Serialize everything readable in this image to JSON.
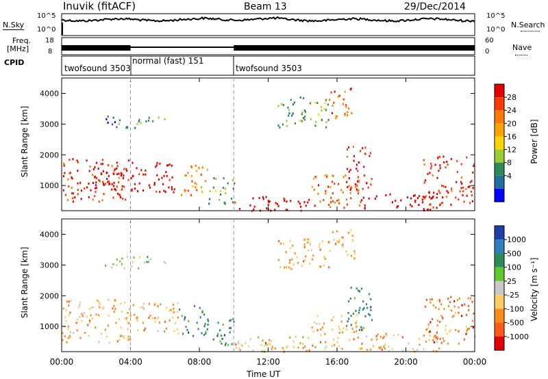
{
  "header": {
    "station": "Inuvik (fitACF)",
    "beam": "Beam 13",
    "date": "29/Dec/2014"
  },
  "noise_panel": {
    "left_label": "N.Sky",
    "left_ticks": [
      "10^5",
      "10^0"
    ],
    "right_ticks": [
      "10^5",
      "10^0"
    ],
    "right_label": "N.Search"
  },
  "freq_panel": {
    "left_label_line1": "Freq.",
    "left_label_line2": "[MHz]",
    "left_ticks": [
      "18",
      "8"
    ],
    "right_ticks": [
      "60",
      "0"
    ],
    "right_label": "Nave"
  },
  "cpid": {
    "label": "CPID",
    "segments": [
      {
        "name": "twofsound 3503",
        "start_hour": 0,
        "end_hour": 4
      },
      {
        "name": "normal (fast) 151",
        "start_hour": 4,
        "end_hour": 10
      },
      {
        "name": "twofsound 3503",
        "start_hour": 10,
        "end_hour": 24
      }
    ]
  },
  "chart_data": [
    {
      "type": "heatmap",
      "title": "",
      "xlabel": "Time UT",
      "ylabel": "Slant Range [km]",
      "xlim": [
        0,
        24
      ],
      "ylim": [
        180,
        4500
      ],
      "x_ticks": [
        "00:00",
        "04:00",
        "08:00",
        "12:00",
        "16:00",
        "20:00",
        "00:00"
      ],
      "y_ticks": [
        "1000",
        "2000",
        "3000",
        "4000"
      ],
      "y_tick_values": [
        1000,
        2000,
        3000,
        4000
      ],
      "colorbar": {
        "label": "Power [dB]",
        "ticks": [
          "28",
          "24",
          "20",
          "16",
          "12",
          "8",
          "4"
        ],
        "colors": [
          "#e30000",
          "#ff3b00",
          "#ff7b00",
          "#ffa400",
          "#ffd400",
          "#9acd32",
          "#2e8b57",
          "#1f6fa0",
          "#0000ff"
        ]
      },
      "scatter_regions": [
        {
          "t_start": 0.0,
          "t_end": 4.0,
          "r_start": 500,
          "r_end": 1900,
          "color_index": 1
        },
        {
          "t_start": 1.8,
          "t_end": 3.6,
          "r_start": 700,
          "r_end": 1600,
          "color_index": 0
        },
        {
          "t_start": 4.0,
          "t_end": 6.8,
          "r_start": 800,
          "r_end": 1800,
          "color_index": 0
        },
        {
          "t_start": 6.8,
          "t_end": 8.5,
          "r_start": 700,
          "r_end": 1700,
          "color_index": 3
        },
        {
          "t_start": 8.5,
          "t_end": 10.0,
          "r_start": 400,
          "r_end": 1300,
          "color_index": 6
        },
        {
          "t_start": 10.0,
          "t_end": 14.5,
          "r_start": 200,
          "r_end": 700,
          "color_index": 0
        },
        {
          "t_start": 14.5,
          "t_end": 17.5,
          "r_start": 300,
          "r_end": 1400,
          "color_index": 2
        },
        {
          "t_start": 16.5,
          "t_end": 18.0,
          "r_start": 900,
          "r_end": 2300,
          "color_index": 1
        },
        {
          "t_start": 17.5,
          "t_end": 22.0,
          "r_start": 200,
          "r_end": 800,
          "color_index": 0
        },
        {
          "t_start": 21.0,
          "t_end": 24.0,
          "r_start": 400,
          "r_end": 2000,
          "color_index": 1
        },
        {
          "t_start": 2.5,
          "t_end": 6.0,
          "r_start": 2900,
          "r_end": 3300,
          "color_index": 7
        },
        {
          "t_start": 12.5,
          "t_end": 15.5,
          "r_start": 2900,
          "r_end": 3900,
          "color_index": 6
        },
        {
          "t_start": 15.5,
          "t_end": 17.0,
          "r_start": 3200,
          "r_end": 4200,
          "color_index": 2
        }
      ]
    },
    {
      "type": "heatmap",
      "title": "",
      "xlabel": "Time UT",
      "ylabel": "Slant Range [km]",
      "xlim": [
        0,
        24
      ],
      "ylim": [
        180,
        4500
      ],
      "x_ticks": [
        "00:00",
        "04:00",
        "08:00",
        "12:00",
        "16:00",
        "20:00",
        "00:00"
      ],
      "y_ticks": [
        "1000",
        "2000",
        "3000",
        "4000"
      ],
      "y_tick_values": [
        1000,
        2000,
        3000,
        4000
      ],
      "colorbar": {
        "label": "Velocity [m s⁻¹]",
        "ticks": [
          "1000",
          "500",
          "100",
          "25",
          "-25",
          "-100",
          "-500",
          "-1000"
        ],
        "colors": [
          "#1e3fa8",
          "#2f7fbf",
          "#2e8b57",
          "#5fc92f",
          "#c8c8c8",
          "#ffcc66",
          "#ff8c1a",
          "#ff5a1a",
          "#e30000"
        ]
      },
      "scatter_regions": [
        {
          "t_start": 0.0,
          "t_end": 4.0,
          "r_start": 500,
          "r_end": 1900,
          "color_index": 6
        },
        {
          "t_start": 4.0,
          "t_end": 6.8,
          "r_start": 800,
          "r_end": 1800,
          "color_index": 6
        },
        {
          "t_start": 6.8,
          "t_end": 8.5,
          "r_start": 700,
          "r_end": 1700,
          "color_index": 2
        },
        {
          "t_start": 8.5,
          "t_end": 10.0,
          "r_start": 400,
          "r_end": 1300,
          "color_index": 2
        },
        {
          "t_start": 10.0,
          "t_end": 14.5,
          "r_start": 200,
          "r_end": 700,
          "color_index": 6
        },
        {
          "t_start": 10.0,
          "t_end": 12.0,
          "r_start": 200,
          "r_end": 500,
          "color_index": 4
        },
        {
          "t_start": 14.5,
          "t_end": 17.5,
          "r_start": 300,
          "r_end": 1400,
          "color_index": 6
        },
        {
          "t_start": 16.5,
          "t_end": 18.0,
          "r_start": 900,
          "r_end": 2300,
          "color_index": 2
        },
        {
          "t_start": 17.5,
          "t_end": 22.0,
          "r_start": 200,
          "r_end": 800,
          "color_index": 6
        },
        {
          "t_start": 21.0,
          "t_end": 24.0,
          "r_start": 400,
          "r_end": 2000,
          "color_index": 7
        },
        {
          "t_start": 2.5,
          "t_end": 6.0,
          "r_start": 2900,
          "r_end": 3300,
          "color_index": 4
        },
        {
          "t_start": 12.5,
          "t_end": 15.5,
          "r_start": 2900,
          "r_end": 3900,
          "color_index": 6
        },
        {
          "t_start": 15.5,
          "t_end": 17.0,
          "r_start": 3200,
          "r_end": 4200,
          "color_index": 6
        }
      ]
    }
  ]
}
